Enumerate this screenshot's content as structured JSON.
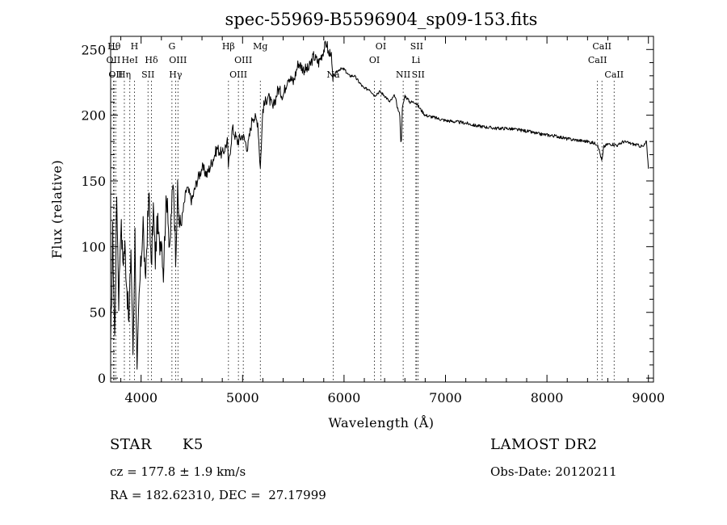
{
  "chart_data": {
    "type": "line",
    "title": "spec-55969-B5596904_sp09-153.fits",
    "xlabel": "Wavelength (Å)",
    "ylabel": "Flux (relative)",
    "xlim": [
      3700,
      9050
    ],
    "ylim": [
      -3,
      260
    ],
    "x_ticks": [
      4000,
      5000,
      6000,
      7000,
      8000,
      9000
    ],
    "y_ticks": [
      0,
      50,
      100,
      150,
      200,
      250
    ],
    "grid": false,
    "legend": "none",
    "series": [
      {
        "x": [
          3700,
          3720,
          3740,
          3760,
          3780,
          3800,
          3820,
          3840,
          3860,
          3880,
          3900,
          3920,
          3940,
          3960,
          3980,
          4000,
          4020,
          4040,
          4060,
          4080,
          4100,
          4120,
          4140,
          4160,
          4180,
          4200,
          4220,
          4240,
          4260,
          4280,
          4300,
          4320,
          4340,
          4360,
          4380,
          4400,
          4450,
          4500,
          4550,
          4600,
          4650,
          4700,
          4750,
          4800,
          4850,
          4861,
          4900,
          4950,
          5000,
          5050,
          5100,
          5150,
          5175,
          5200,
          5250,
          5300,
          5350,
          5400,
          5450,
          5500,
          5550,
          5600,
          5650,
          5700,
          5750,
          5800,
          5830,
          5850,
          5870,
          5890,
          5900,
          5950,
          6000,
          6050,
          6100,
          6150,
          6200,
          6250,
          6300,
          6350,
          6400,
          6450,
          6500,
          6530,
          6550,
          6562,
          6575,
          6600,
          6650,
          6700,
          6750,
          6800,
          6900,
          7000,
          7100,
          7200,
          7300,
          7400,
          7500,
          7600,
          7700,
          7800,
          7900,
          8000,
          8100,
          8200,
          8300,
          8400,
          8450,
          8500,
          8542,
          8560,
          8600,
          8650,
          8700,
          8750,
          8800,
          8850,
          8900,
          8950,
          8980,
          9000
        ],
        "values": [
          20,
          110,
          30,
          140,
          60,
          120,
          90,
          100,
          70,
          40,
          100,
          20,
          110,
          0,
          60,
          90,
          120,
          70,
          110,
          140,
          80,
          130,
          90,
          120,
          100,
          110,
          80,
          125,
          140,
          90,
          130,
          150,
          95,
          140,
          115,
          120,
          145,
          135,
          150,
          160,
          155,
          165,
          175,
          170,
          180,
          160,
          190,
          180,
          185,
          175,
          200,
          195,
          160,
          205,
          215,
          205,
          220,
          215,
          230,
          225,
          240,
          235,
          235,
          245,
          240,
          250,
          255,
          245,
          250,
          225,
          230,
          235,
          235,
          230,
          230,
          225,
          220,
          220,
          215,
          218,
          215,
          210,
          215,
          205,
          200,
          175,
          205,
          215,
          210,
          210,
          205,
          200,
          198,
          196,
          195,
          194,
          192,
          191,
          190,
          190,
          189,
          188,
          186,
          185,
          184,
          182,
          181,
          180,
          179,
          178,
          165,
          176,
          178,
          178,
          177,
          180,
          179,
          178,
          177,
          176,
          180,
          160
        ]
      }
    ],
    "line_markers": [
      {
        "wl": 3734,
        "labels": [
          "Hθ"
        ],
        "row": 0
      },
      {
        "wl": 3727,
        "labels": [
          "OII"
        ],
        "row": 1
      },
      {
        "wl": 3750,
        "labels": [
          "OII"
        ],
        "row": 2
      },
      {
        "wl": 3835,
        "labels": [
          "Hη"
        ],
        "row": 2
      },
      {
        "wl": 3889,
        "labels": [
          "HeI"
        ],
        "row": 1
      },
      {
        "wl": 3934,
        "labels": [
          "H"
        ],
        "row": 0
      },
      {
        "wl": 4068,
        "labels": [
          "SII"
        ],
        "row": 2
      },
      {
        "wl": 4102,
        "labels": [
          "Hδ"
        ],
        "row": 1
      },
      {
        "wl": 4304,
        "labels": [
          "G"
        ],
        "row": 0
      },
      {
        "wl": 4340,
        "labels": [
          "Hγ"
        ],
        "row": 2
      },
      {
        "wl": 4363,
        "labels": [
          "OIII"
        ],
        "row": 1
      },
      {
        "wl": 4861,
        "labels": [
          "Hβ"
        ],
        "row": 0
      },
      {
        "wl": 4959,
        "labels": [
          "OIII"
        ],
        "row": 2
      },
      {
        "wl": 5007,
        "labels": [
          "OIII"
        ],
        "row": 1
      },
      {
        "wl": 5175,
        "labels": [
          "Mg"
        ],
        "row": 0
      },
      {
        "wl": 5893,
        "labels": [
          "Na"
        ],
        "row": 2
      },
      {
        "wl": 6300,
        "labels": [
          "OI"
        ],
        "row": 1
      },
      {
        "wl": 6363,
        "labels": [
          "OI"
        ],
        "row": 0
      },
      {
        "wl": 6583,
        "labels": [
          "NII"
        ],
        "row": 2
      },
      {
        "wl": 6708,
        "labels": [
          "Li"
        ],
        "row": 1
      },
      {
        "wl": 6716,
        "labels": [
          "SII"
        ],
        "row": 0
      },
      {
        "wl": 6731,
        "labels": [
          "SII"
        ],
        "row": 2
      },
      {
        "wl": 8498,
        "labels": [
          "CaII"
        ],
        "row": 1
      },
      {
        "wl": 8542,
        "labels": [
          "CaII"
        ],
        "row": 0
      },
      {
        "wl": 8662,
        "labels": [
          "CaII"
        ],
        "row": 2
      }
    ]
  },
  "info": {
    "class_label": "STAR",
    "subclass_label": "K5",
    "survey": "LAMOST DR2",
    "redshift": "cz = 177.8 ± 1.9 km/s",
    "obs_date": "Obs-Date: 20120211",
    "coords": "RA = 182.62310, DEC =  27.17999"
  }
}
